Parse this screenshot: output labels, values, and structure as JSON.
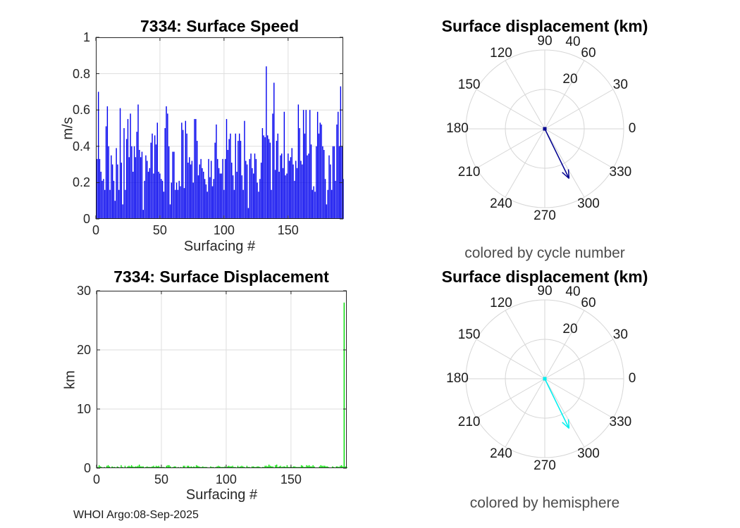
{
  "figure": {
    "footer": "WHOI Argo:08-Sep-2025"
  },
  "colors": {
    "axis": "#262626",
    "grid": "#dedede",
    "polar_grid": "#d6d6d6",
    "bar_blue": "#0000EE",
    "bar_green": "#00DF00",
    "arrow_navy": "#000090",
    "arrow_cyan": "#00EEEE",
    "caption_gray": "#4d4d4d"
  },
  "chart_data": [
    {
      "id": "speed",
      "type": "bar",
      "title": "7334: Surface Speed",
      "xlabel": "Surfacing #",
      "ylabel": "m/s",
      "xlim": [
        0,
        193
      ],
      "ylim": [
        0,
        1
      ],
      "xticks": [
        0,
        50,
        100,
        150
      ],
      "yticks": [
        0,
        0.2,
        0.4,
        0.6,
        0.8,
        1
      ],
      "grid": true,
      "bar_color": "#0000EE",
      "values": [
        0.33,
        0.7,
        0.33,
        0.26,
        0.21,
        0.22,
        0.16,
        0.51,
        0.62,
        0.4,
        0.16,
        0.35,
        0.3,
        0.21,
        0.1,
        0.39,
        0.3,
        0.16,
        0.61,
        0.31,
        0.08,
        0.5,
        0.16,
        0.44,
        0.55,
        0.34,
        0.58,
        0.4,
        0.26,
        0.4,
        0.34,
        0.48,
        0.63,
        0.38,
        0.34,
        0.37,
        0.05,
        0.21,
        0.35,
        0.32,
        0.26,
        0.28,
        0.42,
        0.47,
        0.25,
        0.46,
        0.41,
        0.53,
        0.26,
        0.25,
        0.22,
        0.21,
        0.15,
        0.5,
        0.62,
        0.58,
        0.4,
        0.08,
        0.2,
        0.37,
        0.37,
        0.16,
        0.2,
        0.16,
        0.21,
        0.18,
        0.53,
        0.49,
        0.17,
        0.54,
        0.47,
        0.31,
        0.34,
        0.3,
        0.32,
        0.2,
        0.55,
        0.55,
        0.43,
        0.24,
        0.3,
        0.33,
        0.28,
        0.26,
        0.22,
        0.19,
        0.15,
        0.33,
        0.23,
        0.32,
        0.18,
        0.22,
        0.42,
        0.52,
        0.33,
        0.28,
        0.25,
        0.25,
        0.33,
        0.16,
        0.33,
        0.55,
        0.38,
        0.44,
        0.47,
        0.31,
        0.24,
        0.16,
        0.47,
        0.26,
        0.43,
        0.47,
        0.43,
        0.24,
        0.16,
        0.54,
        0.32,
        0.3,
        0.06,
        0.33,
        0.36,
        0.28,
        0.25,
        0.36,
        0.33,
        0.2,
        0.15,
        0.22,
        0.31,
        0.5,
        0.46,
        0.45,
        0.84,
        0.46,
        0.44,
        0.42,
        0.16,
        0.58,
        0.75,
        0.27,
        0.43,
        0.47,
        0.26,
        0.35,
        0.36,
        0.28,
        0.59,
        0.24,
        0.25,
        0.36,
        0.32,
        0.34,
        0.39,
        0.3,
        0.21,
        0.32,
        0.28,
        0.63,
        0.5,
        0.32,
        0.3,
        0.6,
        0.47,
        0.6,
        0.35,
        0.36,
        0.6,
        0.41,
        0.16,
        0.18,
        0.15,
        0.4,
        0.59,
        0.47,
        0.53,
        0.52,
        0.4,
        0.38,
        0.22,
        0.08,
        0.16,
        0.35,
        0.3,
        0.16,
        0.4,
        0.4,
        0.21,
        0.52,
        0.59,
        0.4,
        0.73,
        0.4,
        0.22
      ]
    },
    {
      "id": "disp",
      "type": "bar",
      "title": "7334: Surface Displacement",
      "xlabel": "Surfacing #",
      "ylabel": "km",
      "xlim": [
        0,
        193
      ],
      "ylim": [
        0,
        30
      ],
      "xticks": [
        0,
        50,
        100,
        150
      ],
      "yticks": [
        0,
        10,
        20,
        30
      ],
      "grid": true,
      "bar_color": "#00DF00",
      "values": [
        0.2,
        0.5,
        0.3,
        0.2,
        0.1,
        0.2,
        0.1,
        0.4,
        0.5,
        0.3,
        0.1,
        0.3,
        0.2,
        0.2,
        0.1,
        0.3,
        0.2,
        0.1,
        0.5,
        0.2,
        0.1,
        0.4,
        0.1,
        0.3,
        0.4,
        0.3,
        0.5,
        0.3,
        0.2,
        0.3,
        0.3,
        0.4,
        0.6,
        0.3,
        0.3,
        0.3,
        0.1,
        0.2,
        0.3,
        0.2,
        0.2,
        0.2,
        0.3,
        0.4,
        0.2,
        0.4,
        0.3,
        0.4,
        0.2,
        0.2,
        0.2,
        0.2,
        0.1,
        0.4,
        0.5,
        0.5,
        0.3,
        0.1,
        0.2,
        0.3,
        0.3,
        0.1,
        0.2,
        0.1,
        0.2,
        0.1,
        0.4,
        0.4,
        0.1,
        0.4,
        0.4,
        0.2,
        0.3,
        0.2,
        0.3,
        0.2,
        0.5,
        0.4,
        0.3,
        0.2,
        0.2,
        0.3,
        0.2,
        0.2,
        0.2,
        0.1,
        0.1,
        0.3,
        0.2,
        0.2,
        0.1,
        0.2,
        0.3,
        0.4,
        0.3,
        0.2,
        0.2,
        0.2,
        0.3,
        0.1,
        0.3,
        0.4,
        0.3,
        0.3,
        0.4,
        0.2,
        0.2,
        0.1,
        0.4,
        0.2,
        0.3,
        0.4,
        0.3,
        0.2,
        0.1,
        0.4,
        0.2,
        0.2,
        0.1,
        0.3,
        0.3,
        0.2,
        0.2,
        0.3,
        0.3,
        0.2,
        0.1,
        0.2,
        0.2,
        0.4,
        0.4,
        0.3,
        0.6,
        0.4,
        0.3,
        0.3,
        0.1,
        0.5,
        0.6,
        0.2,
        0.3,
        0.4,
        0.2,
        0.3,
        0.3,
        0.2,
        0.5,
        0.2,
        0.2,
        0.3,
        0.2,
        0.3,
        0.3,
        0.2,
        0.2,
        0.2,
        0.2,
        0.5,
        0.4,
        0.2,
        0.2,
        0.5,
        0.4,
        0.5,
        0.3,
        0.3,
        0.5,
        0.3,
        0.1,
        0.1,
        0.1,
        0.3,
        0.5,
        0.4,
        0.4,
        0.4,
        0.3,
        0.3,
        0.2,
        0.1,
        0.1,
        0.3,
        0.2,
        0.1,
        0.3,
        0.3,
        0.2,
        0.4,
        0.5,
        0.3,
        28,
        0.3,
        0.2
      ]
    },
    {
      "id": "polar-cycle",
      "type": "polar",
      "title": "Surface displacement (km)",
      "caption": "colored by cycle number",
      "rmax": 40,
      "rticks": [
        20,
        40
      ],
      "theta_ticks": [
        0,
        30,
        60,
        90,
        120,
        150,
        180,
        210,
        240,
        270,
        300,
        330
      ],
      "arrow": {
        "km": 28,
        "bearing_deg": 296,
        "color": "#000090"
      }
    },
    {
      "id": "polar-hemisphere",
      "type": "polar",
      "title": "Surface displacement (km)",
      "caption": "colored by hemisphere",
      "rmax": 40,
      "rticks": [
        20,
        40
      ],
      "theta_ticks": [
        0,
        30,
        60,
        90,
        120,
        150,
        180,
        210,
        240,
        270,
        300,
        330
      ],
      "arrow": {
        "km": 28,
        "bearing_deg": 296,
        "color": "#00EEEE"
      }
    }
  ]
}
